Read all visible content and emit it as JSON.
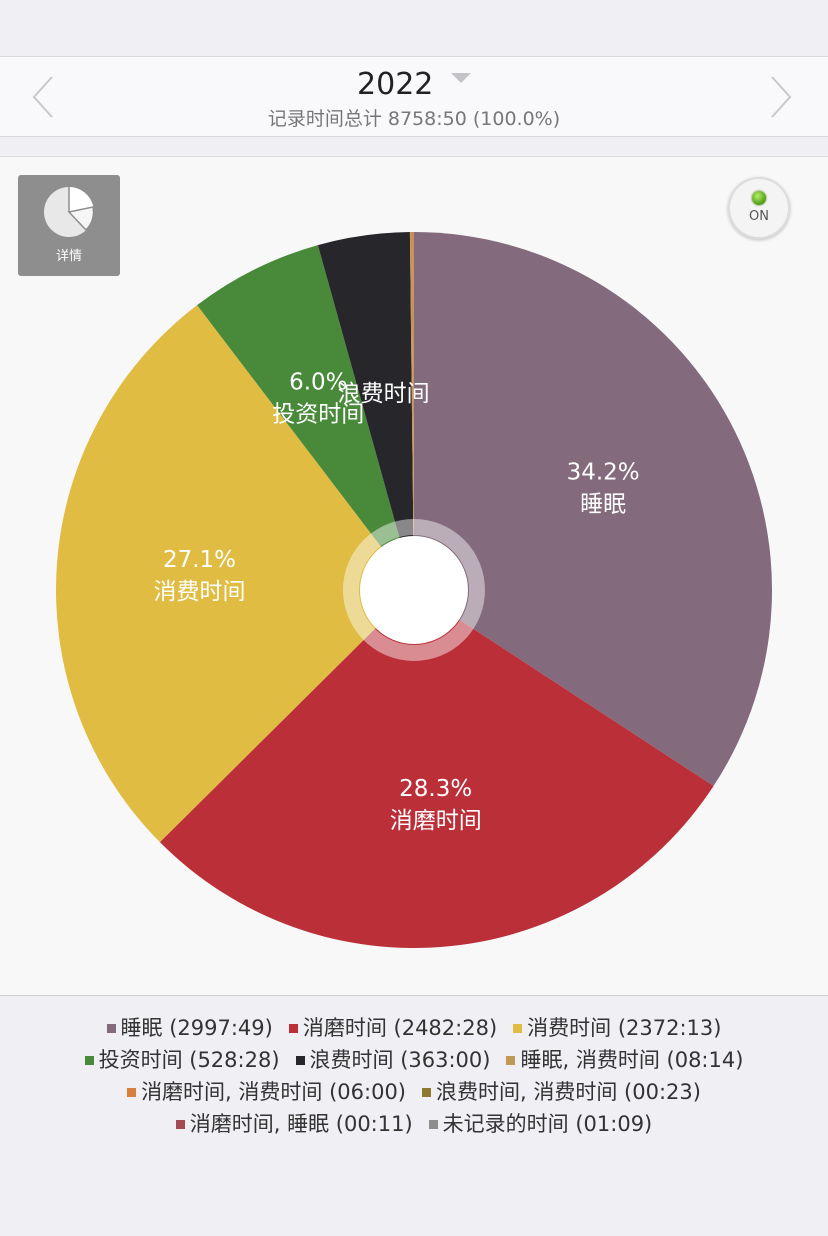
{
  "header": {
    "year": "2022",
    "subtitle": "记录时间总计 8758:50 (100.0%)"
  },
  "toolbar": {
    "detail_label": "详情",
    "toggle_label": "ON"
  },
  "chart_data": {
    "type": "pie",
    "slices": [
      {
        "label": "睡眠",
        "value": 2997.82,
        "percent_label": "34.2%",
        "color": "#836a7c"
      },
      {
        "label": "消磨时间",
        "value": 2482.47,
        "percent_label": "28.3%",
        "color": "#bb2f38"
      },
      {
        "label": "消费时间",
        "value": 2372.22,
        "percent_label": "27.1%",
        "color": "#e1bc42"
      },
      {
        "label": "投资时间",
        "value": 528.47,
        "percent_label": "6.0%",
        "color": "#488a3a"
      },
      {
        "label": "浪费时间",
        "value": 363.0,
        "percent_label": "",
        "color": "#27262b"
      },
      {
        "label": "睡眠, 消费时间",
        "value": 8.23,
        "percent_label": "",
        "color": "#c09a55"
      },
      {
        "label": "消磨时间, 消费时间",
        "value": 6.0,
        "percent_label": "",
        "color": "#d87f3c"
      },
      {
        "label": "浪费时间, 消费时间",
        "value": 0.38,
        "percent_label": "",
        "color": "#8c7b2e"
      },
      {
        "label": "消磨时间, 睡眠",
        "value": 0.18,
        "percent_label": "",
        "color": "#a44a55"
      },
      {
        "label": "未记录的时间",
        "value": 1.15,
        "percent_label": "",
        "color": "#8e8e8e"
      }
    ]
  },
  "legend": {
    "rows": [
      [
        {
          "text": "睡眠 (2997:49)",
          "color": "#836a7c"
        },
        {
          "text": "消磨时间 (2482:28)",
          "color": "#bb2f38"
        },
        {
          "text": "消费时间 (2372:13)",
          "color": "#e1bc42"
        }
      ],
      [
        {
          "text": "投资时间 (528:28)",
          "color": "#488a3a"
        },
        {
          "text": "浪费时间 (363:00)",
          "color": "#27262b"
        },
        {
          "text": "睡眠, 消费时间 (08:14)",
          "color": "#c09a55"
        }
      ],
      [
        {
          "text": "消磨时间, 消费时间 (06:00)",
          "color": "#d87f3c"
        },
        {
          "text": "浪费时间, 消费时间 (00:23)",
          "color": "#8c7b2e"
        }
      ],
      [
        {
          "text": "消磨时间, 睡眠 (00:11)",
          "color": "#a44a55"
        },
        {
          "text": "未记录的时间 (01:09)",
          "color": "#8e8e8e"
        }
      ]
    ]
  }
}
